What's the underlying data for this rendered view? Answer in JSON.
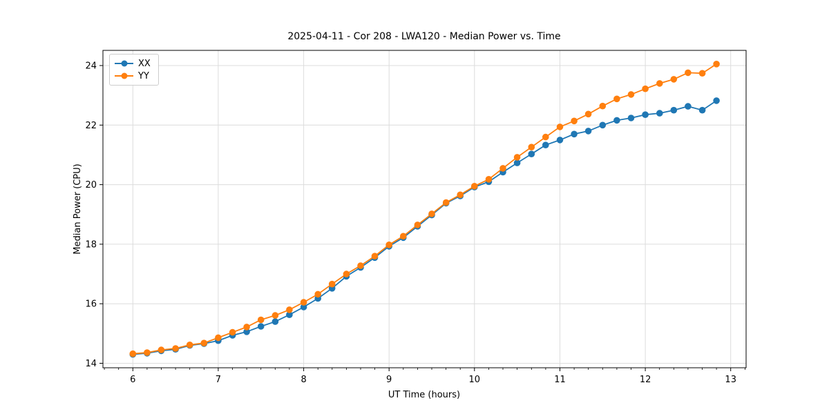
{
  "figure": {
    "background": "#ffffff",
    "spine_color": "#000000",
    "grid_color": "#dcdcdc"
  },
  "chart_data": {
    "type": "line",
    "title": "2025-04-11 - Cor 208 - LWA120 - Median Power vs. Time",
    "xlabel": "UT Time (hours)",
    "ylabel": "Median Power (CPU)",
    "xlim": [
      5.65,
      13.18
    ],
    "ylim": [
      13.85,
      24.51
    ],
    "xticks": [
      6,
      7,
      8,
      9,
      10,
      11,
      12,
      13
    ],
    "yticks": [
      14,
      16,
      18,
      20,
      22,
      24
    ],
    "x_minor_ticks_per_hour": 6,
    "grid": true,
    "legend_position": "upper-left",
    "marker": "circle",
    "x": [
      6.0,
      6.167,
      6.333,
      6.5,
      6.667,
      6.833,
      7.0,
      7.167,
      7.333,
      7.5,
      7.667,
      7.833,
      8.0,
      8.167,
      8.333,
      8.5,
      8.667,
      8.833,
      9.0,
      9.167,
      9.333,
      9.5,
      9.667,
      9.833,
      10.0,
      10.167,
      10.333,
      10.5,
      10.667,
      10.833,
      11.0,
      11.167,
      11.333,
      11.5,
      11.667,
      11.833,
      12.0,
      12.167,
      12.333,
      12.5,
      12.667,
      12.833
    ],
    "series": [
      {
        "name": "XX",
        "color": "#1f77b4",
        "values": [
          14.3,
          14.34,
          14.42,
          14.47,
          14.6,
          14.66,
          14.76,
          14.94,
          15.06,
          15.24,
          15.4,
          15.63,
          15.89,
          16.18,
          16.52,
          16.92,
          17.22,
          17.55,
          17.93,
          18.22,
          18.6,
          18.98,
          19.38,
          19.62,
          19.92,
          20.1,
          20.42,
          20.73,
          21.03,
          21.33,
          21.5,
          21.7,
          21.8,
          22.0,
          22.16,
          22.24,
          22.35,
          22.4,
          22.5,
          22.63,
          22.5,
          22.82
        ]
      },
      {
        "name": "YY",
        "color": "#ff7f0e",
        "values": [
          14.32,
          14.36,
          14.45,
          14.5,
          14.62,
          14.68,
          14.86,
          15.04,
          15.22,
          15.46,
          15.61,
          15.8,
          16.05,
          16.32,
          16.66,
          17.0,
          17.28,
          17.6,
          17.98,
          18.27,
          18.65,
          19.02,
          19.4,
          19.66,
          19.95,
          20.18,
          20.55,
          20.92,
          21.26,
          21.6,
          21.94,
          22.14,
          22.37,
          22.64,
          22.88,
          23.03,
          23.22,
          23.4,
          23.54,
          23.76,
          23.74,
          24.05
        ]
      }
    ]
  }
}
